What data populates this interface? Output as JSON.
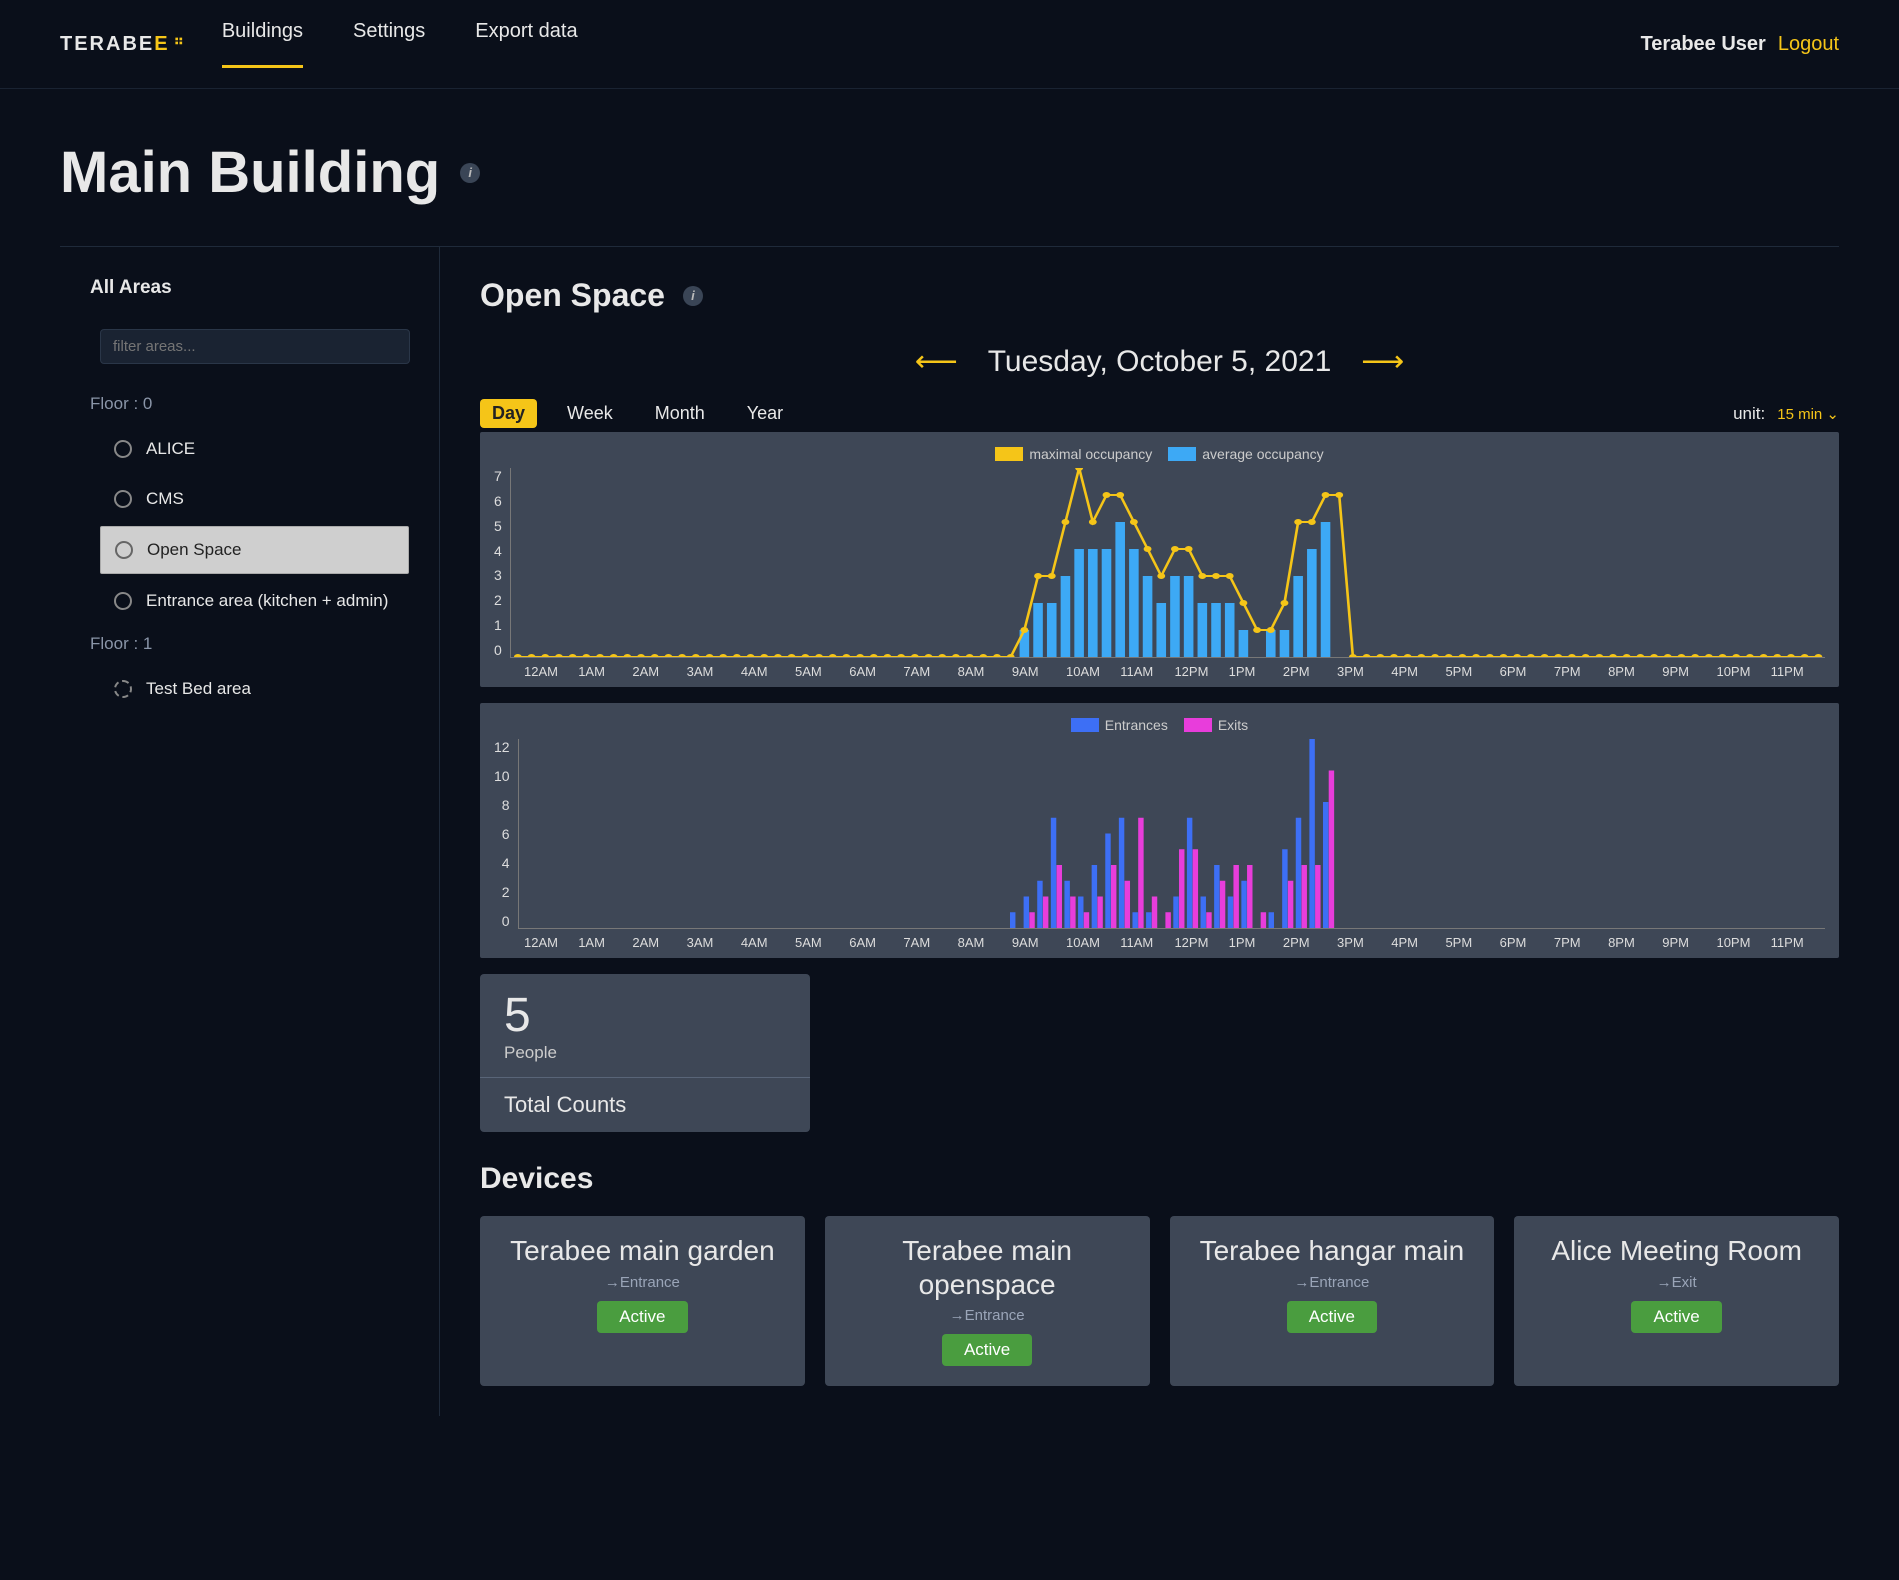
{
  "nav": {
    "logo_main": "TERABE",
    "logo_accent": "E",
    "items": [
      "Buildings",
      "Settings",
      "Export data"
    ],
    "active_index": 0,
    "user": "Terabee User",
    "logout": "Logout"
  },
  "page": {
    "title": "Main Building"
  },
  "sidebar": {
    "heading": "All Areas",
    "filter_placeholder": "filter areas...",
    "floors": [
      {
        "label": "Floor : 0",
        "areas": [
          {
            "name": "ALICE",
            "selected": false
          },
          {
            "name": "CMS",
            "selected": false
          },
          {
            "name": "Open Space",
            "selected": true
          },
          {
            "name": "Entrance area (kitchen + admin)",
            "selected": false
          }
        ]
      },
      {
        "label": "Floor : 1",
        "areas": [
          {
            "name": "Test Bed area",
            "selected": false,
            "dashed": true
          }
        ]
      }
    ]
  },
  "main": {
    "section_title": "Open Space",
    "date": "Tuesday, October 5, 2021",
    "range_tabs": [
      "Day",
      "Week",
      "Month",
      "Year"
    ],
    "range_active": 0,
    "unit_label": "unit:",
    "unit_value": "15 min ⌄"
  },
  "chart_occupancy": {
    "type": "bar+line",
    "legend": [
      {
        "label": "maximal occupancy",
        "color": "#f5c518"
      },
      {
        "label": "average occupancy",
        "color": "#3da9f5"
      }
    ],
    "ylim": [
      0,
      7
    ],
    "yticks": [
      7,
      6,
      5,
      4,
      3,
      2,
      1,
      0
    ],
    "xlabels": [
      "12AM",
      "1AM",
      "2AM",
      "3AM",
      "4AM",
      "5AM",
      "6AM",
      "7AM",
      "8AM",
      "9AM",
      "10AM",
      "11AM",
      "12PM",
      "1PM",
      "2PM",
      "3PM",
      "4PM",
      "5PM",
      "6PM",
      "7PM",
      "8PM",
      "9PM",
      "10PM",
      "11PM"
    ],
    "avg_values": [
      0,
      0,
      0,
      0,
      0,
      0,
      0,
      0,
      0,
      0,
      0,
      0,
      0,
      0,
      0,
      0,
      0,
      0,
      0,
      0,
      0,
      0,
      0,
      0,
      0,
      0,
      0,
      0,
      0,
      0,
      0,
      0,
      0,
      0,
      0,
      0,
      0,
      1,
      2,
      2,
      3,
      4,
      4,
      4,
      5,
      4,
      3,
      2,
      3,
      3,
      2,
      2,
      2,
      1,
      0,
      1,
      1,
      3,
      4,
      5,
      0,
      0,
      0,
      0,
      0,
      0,
      0,
      0,
      0,
      0,
      0,
      0,
      0,
      0,
      0,
      0,
      0,
      0,
      0,
      0,
      0,
      0,
      0,
      0,
      0,
      0,
      0,
      0,
      0,
      0,
      0,
      0,
      0,
      0,
      0,
      0
    ],
    "max_values": [
      0,
      0,
      0,
      0,
      0,
      0,
      0,
      0,
      0,
      0,
      0,
      0,
      0,
      0,
      0,
      0,
      0,
      0,
      0,
      0,
      0,
      0,
      0,
      0,
      0,
      0,
      0,
      0,
      0,
      0,
      0,
      0,
      0,
      0,
      0,
      0,
      0,
      1,
      3,
      3,
      5,
      7,
      5,
      6,
      6,
      5,
      4,
      3,
      4,
      4,
      3,
      3,
      3,
      2,
      1,
      1,
      2,
      5,
      5,
      6,
      6,
      0,
      0,
      0,
      0,
      0,
      0,
      0,
      0,
      0,
      0,
      0,
      0,
      0,
      0,
      0,
      0,
      0,
      0,
      0,
      0,
      0,
      0,
      0,
      0,
      0,
      0,
      0,
      0,
      0,
      0,
      0,
      0,
      0,
      0,
      0
    ],
    "bar_color": "#3da9f5",
    "line_color": "#f5c518",
    "background_color": "#3e4756"
  },
  "chart_flow": {
    "type": "grouped-bar",
    "legend": [
      {
        "label": "Entrances",
        "color": "#3d6ff5"
      },
      {
        "label": "Exits",
        "color": "#e83ddb"
      }
    ],
    "ylim": [
      0,
      12
    ],
    "yticks": [
      12,
      10,
      8,
      6,
      4,
      2,
      0
    ],
    "xlabels": [
      "12AM",
      "1AM",
      "2AM",
      "3AM",
      "4AM",
      "5AM",
      "6AM",
      "7AM",
      "8AM",
      "9AM",
      "10AM",
      "11AM",
      "12PM",
      "1PM",
      "2PM",
      "3PM",
      "4PM",
      "5PM",
      "6PM",
      "7PM",
      "8PM",
      "9PM",
      "10PM",
      "11PM"
    ],
    "entrances": [
      0,
      0,
      0,
      0,
      0,
      0,
      0,
      0,
      0,
      0,
      0,
      0,
      0,
      0,
      0,
      0,
      0,
      0,
      0,
      0,
      0,
      0,
      0,
      0,
      0,
      0,
      0,
      0,
      0,
      0,
      0,
      0,
      0,
      0,
      0,
      0,
      1,
      2,
      3,
      7,
      3,
      2,
      4,
      6,
      7,
      1,
      1,
      0,
      2,
      7,
      2,
      4,
      2,
      3,
      0,
      1,
      5,
      7,
      12,
      8,
      0,
      0,
      0,
      0,
      0,
      0,
      0,
      0,
      0,
      0,
      0,
      0,
      0,
      0,
      0,
      0,
      0,
      0,
      0,
      0,
      0,
      0,
      0,
      0,
      0,
      0,
      0,
      0,
      0,
      0,
      0,
      0,
      0,
      0,
      0,
      0
    ],
    "exits": [
      0,
      0,
      0,
      0,
      0,
      0,
      0,
      0,
      0,
      0,
      0,
      0,
      0,
      0,
      0,
      0,
      0,
      0,
      0,
      0,
      0,
      0,
      0,
      0,
      0,
      0,
      0,
      0,
      0,
      0,
      0,
      0,
      0,
      0,
      0,
      0,
      0,
      1,
      2,
      4,
      2,
      1,
      2,
      4,
      3,
      7,
      2,
      1,
      5,
      5,
      1,
      3,
      4,
      4,
      1,
      0,
      3,
      4,
      4,
      10,
      0,
      0,
      0,
      0,
      0,
      0,
      0,
      0,
      0,
      0,
      0,
      0,
      0,
      0,
      0,
      0,
      0,
      0,
      0,
      0,
      0,
      0,
      0,
      0,
      0,
      0,
      0,
      0,
      0,
      0,
      0,
      0,
      0,
      0,
      0,
      0
    ],
    "entrance_color": "#3d6ff5",
    "exit_color": "#e83ddb",
    "background_color": "#3e4756"
  },
  "counts": {
    "value": "5",
    "unit": "People",
    "label": "Total Counts"
  },
  "devices": {
    "title": "Devices",
    "list": [
      {
        "name": "Terabee main garden",
        "dir": "→Entrance",
        "status": "Active"
      },
      {
        "name": "Terabee main openspace",
        "dir": "→Entrance",
        "status": "Active"
      },
      {
        "name": "Terabee hangar main",
        "dir": "→Entrance",
        "status": "Active"
      },
      {
        "name": "Alice Meeting Room",
        "dir": "→Exit",
        "status": "Active"
      }
    ],
    "status_color": "#4a9d3f"
  }
}
